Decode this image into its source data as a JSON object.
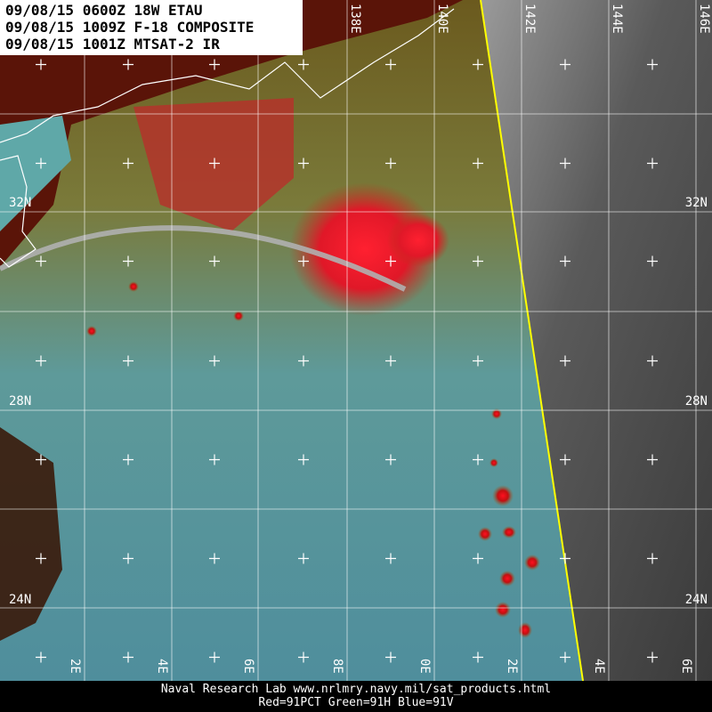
{
  "header": {
    "lines": [
      "09/08/15 0600Z 18W ETAU",
      "09/08/15 1009Z F-18 COMPOSITE",
      "09/08/15 1001Z MTSAT-2 IR"
    ]
  },
  "longitude_labels": {
    "top": [
      "138E",
      "140E",
      "142E",
      "144E",
      "146E"
    ],
    "bottom": [
      "2E",
      "4E",
      "6E",
      "8E",
      "0E",
      "2E",
      "4E",
      "6E"
    ]
  },
  "latitude_labels": {
    "left": [
      "32N",
      "28N",
      "24N"
    ],
    "right": [
      "32N",
      "28N",
      "24N"
    ]
  },
  "footer": {
    "lines": [
      "Naval Research Lab  www.nrlmry.navy.mil/sat_products.html",
      "Red=91PCT  Green=91H  Blue=91V"
    ]
  }
}
